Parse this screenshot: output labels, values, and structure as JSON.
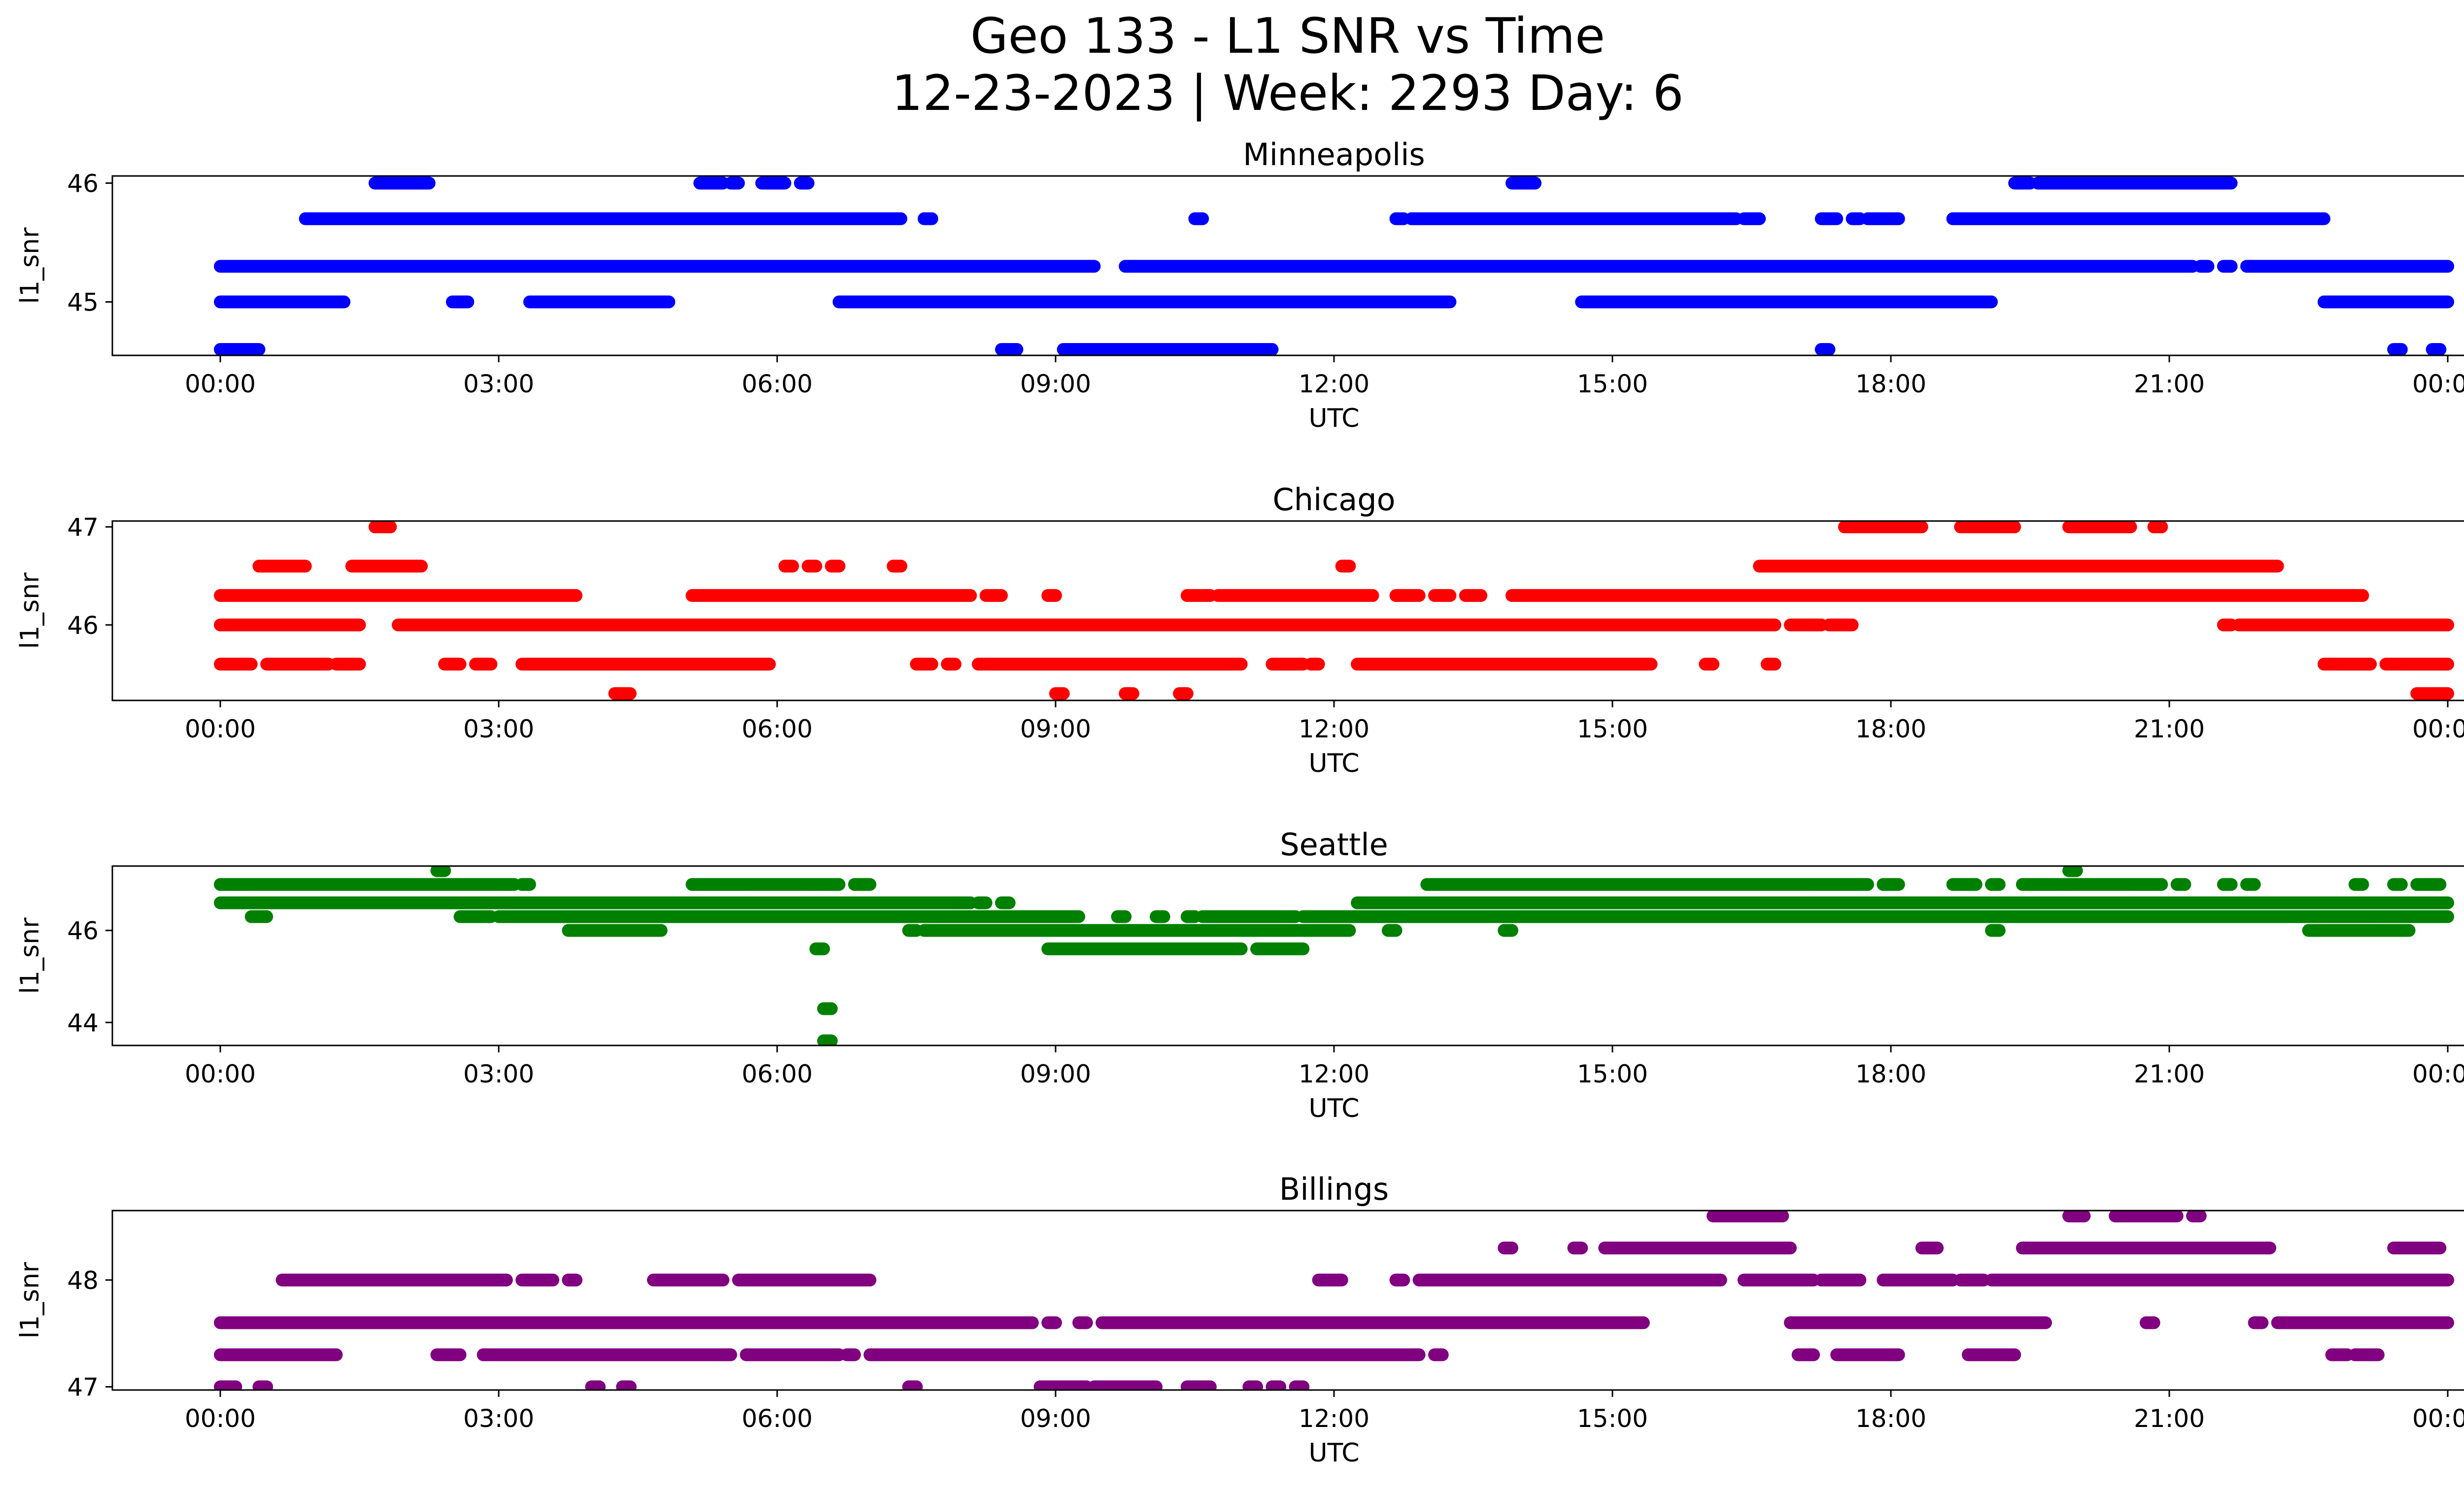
{
  "title": "Geo 133 - L1 SNR vs Time",
  "subtitle": "12-23-2023 | Week: 2293 Day: 6",
  "chart_data": [
    {
      "type": "scatter",
      "title": "Minneapolis",
      "xlabel": "UTC",
      "ylabel": "l1_snr",
      "color": "#0000ff",
      "xlim": [
        "23:10",
        "00:45 (next day)"
      ],
      "ylim": [
        44.55,
        46.06
      ],
      "yticks": [
        45,
        46
      ],
      "xticks": [
        "00:00",
        "03:00",
        "06:00",
        "09:00",
        "12:00",
        "15:00",
        "18:00",
        "21:00",
        "00:00"
      ],
      "levels": [
        {
          "y": 46.0,
          "x_ranges": [
            [
              "01:40",
              "02:15"
            ],
            [
              "05:10",
              "05:25"
            ],
            [
              "05:30",
              "05:35"
            ],
            [
              "05:50",
              "06:05"
            ],
            [
              "06:15",
              "06:20"
            ],
            [
              "13:55",
              "14:10"
            ],
            [
              "19:20",
              "19:30"
            ],
            [
              "19:35",
              "21:40"
            ]
          ]
        },
        {
          "y": 45.7,
          "x_ranges": [
            [
              "00:55",
              "07:20"
            ],
            [
              "07:35",
              "07:40"
            ],
            [
              "10:30",
              "10:35"
            ],
            [
              "12:40",
              "12:45"
            ],
            [
              "12:50",
              "16:20"
            ],
            [
              "16:25",
              "16:35"
            ],
            [
              "17:15",
              "17:25"
            ],
            [
              "17:35",
              "17:40"
            ],
            [
              "17:45",
              "18:05"
            ],
            [
              "18:40",
              "22:40"
            ]
          ]
        },
        {
          "y": 45.3,
          "x_ranges": [
            [
              "00:00",
              "09:25"
            ],
            [
              "09:45",
              "21:15"
            ],
            [
              "21:20",
              "21:25"
            ],
            [
              "21:35",
              "21:40"
            ],
            [
              "21:50",
              "24:00"
            ]
          ]
        },
        {
          "y": 45.0,
          "x_ranges": [
            [
              "00:00",
              "01:20"
            ],
            [
              "02:30",
              "02:40"
            ],
            [
              "03:20",
              "04:50"
            ],
            [
              "06:40",
              "13:15"
            ],
            [
              "14:40",
              "19:05"
            ],
            [
              "22:40",
              "24:00"
            ]
          ]
        },
        {
          "y": 44.6,
          "x_ranges": [
            [
              "00:00",
              "00:25"
            ],
            [
              "08:25",
              "08:35"
            ],
            [
              "09:05",
              "11:20"
            ],
            [
              "17:15",
              "17:20"
            ],
            [
              "23:25",
              "23:30"
            ],
            [
              "23:50",
              "23:55"
            ]
          ]
        }
      ]
    },
    {
      "type": "scatter",
      "title": "Chicago",
      "xlabel": "UTC",
      "ylabel": "l1_snr",
      "color": "#ff0000",
      "xlim": [
        "23:10",
        "00:45 (next day)"
      ],
      "ylim": [
        45.23,
        47.06
      ],
      "yticks": [
        46,
        47
      ],
      "xticks": [
        "00:00",
        "03:00",
        "06:00",
        "09:00",
        "12:00",
        "15:00",
        "18:00",
        "21:00",
        "00:00"
      ],
      "levels": [
        {
          "y": 47.0,
          "x_ranges": [
            [
              "01:40",
              "01:50"
            ],
            [
              "17:30",
              "18:20"
            ],
            [
              "18:45",
              "19:20"
            ],
            [
              "19:55",
              "20:35"
            ],
            [
              "20:50",
              "20:55"
            ]
          ]
        },
        {
          "y": 46.6,
          "x_ranges": [
            [
              "00:25",
              "00:55"
            ],
            [
              "01:25",
              "02:10"
            ],
            [
              "06:05",
              "06:10"
            ],
            [
              "06:20",
              "06:25"
            ],
            [
              "06:35",
              "06:40"
            ],
            [
              "07:15",
              "07:20"
            ],
            [
              "12:05",
              "12:10"
            ],
            [
              "16:35",
              "22:10"
            ]
          ]
        },
        {
          "y": 46.3,
          "x_ranges": [
            [
              "00:00",
              "03:50"
            ],
            [
              "05:05",
              "08:05"
            ],
            [
              "08:15",
              "08:25"
            ],
            [
              "08:55",
              "09:00"
            ],
            [
              "10:25",
              "10:40"
            ],
            [
              "10:45",
              "12:25"
            ],
            [
              "12:40",
              "12:55"
            ],
            [
              "13:05",
              "13:15"
            ],
            [
              "13:25",
              "13:35"
            ],
            [
              "13:55",
              "23:05"
            ]
          ]
        },
        {
          "y": 46.0,
          "x_ranges": [
            [
              "00:00",
              "01:30"
            ],
            [
              "01:55",
              "16:45"
            ],
            [
              "16:55",
              "17:15"
            ],
            [
              "17:20",
              "17:35"
            ],
            [
              "21:35",
              "21:40"
            ],
            [
              "21:45",
              "24:00"
            ]
          ]
        },
        {
          "y": 45.6,
          "x_ranges": [
            [
              "00:00",
              "00:20"
            ],
            [
              "00:30",
              "01:10"
            ],
            [
              "01:15",
              "01:30"
            ],
            [
              "02:25",
              "02:35"
            ],
            [
              "02:45",
              "02:55"
            ],
            [
              "03:15",
              "05:55"
            ],
            [
              "07:30",
              "07:40"
            ],
            [
              "07:50",
              "07:55"
            ],
            [
              "08:10",
              "11:00"
            ],
            [
              "11:20",
              "11:40"
            ],
            [
              "11:45",
              "11:50"
            ],
            [
              "12:15",
              "15:25"
            ],
            [
              "16:00",
              "16:05"
            ],
            [
              "16:40",
              "16:45"
            ],
            [
              "22:40",
              "23:10"
            ],
            [
              "23:20",
              "24:00"
            ]
          ]
        },
        {
          "y": 45.3,
          "x_ranges": [
            [
              "04:15",
              "04:25"
            ],
            [
              "09:00",
              "09:05"
            ],
            [
              "09:45",
              "09:50"
            ],
            [
              "10:20",
              "10:25"
            ],
            [
              "23:40",
              "24:00"
            ]
          ]
        }
      ]
    },
    {
      "type": "scatter",
      "title": "Seattle",
      "xlabel": "UTC",
      "ylabel": "l1_snr",
      "color": "#008000",
      "xlim": [
        "23:10",
        "00:45 (next day)"
      ],
      "ylim": [
        43.5,
        47.4
      ],
      "yticks": [
        44,
        46
      ],
      "xticks": [
        "00:00",
        "03:00",
        "06:00",
        "09:00",
        "12:00",
        "15:00",
        "18:00",
        "21:00",
        "00:00"
      ],
      "levels": [
        {
          "y": 47.3,
          "x_ranges": [
            [
              "02:20",
              "02:25"
            ],
            [
              "19:55",
              "20:00"
            ]
          ]
        },
        {
          "y": 47.0,
          "x_ranges": [
            [
              "00:00",
              "03:10"
            ],
            [
              "03:15",
              "03:20"
            ],
            [
              "05:05",
              "06:40"
            ],
            [
              "06:50",
              "07:00"
            ],
            [
              "13:00",
              "17:45"
            ],
            [
              "17:55",
              "18:05"
            ],
            [
              "18:40",
              "18:55"
            ],
            [
              "19:05",
              "19:10"
            ],
            [
              "19:25",
              "20:55"
            ],
            [
              "21:05",
              "21:10"
            ],
            [
              "21:35",
              "21:40"
            ],
            [
              "21:50",
              "21:55"
            ],
            [
              "23:00",
              "23:05"
            ],
            [
              "23:25",
              "23:30"
            ],
            [
              "23:40",
              "23:55"
            ]
          ]
        },
        {
          "y": 46.6,
          "x_ranges": [
            [
              "00:00",
              "07:55"
            ],
            [
              "07:55",
              "08:05"
            ],
            [
              "08:10",
              "08:15"
            ],
            [
              "08:25",
              "08:30"
            ],
            [
              "12:15",
              "24:00"
            ]
          ]
        },
        {
          "y": 46.3,
          "x_ranges": [
            [
              "00:20",
              "00:30"
            ],
            [
              "02:35",
              "02:55"
            ],
            [
              "03:00",
              "09:15"
            ],
            [
              "09:40",
              "09:45"
            ],
            [
              "10:05",
              "10:10"
            ],
            [
              "10:25",
              "10:30"
            ],
            [
              "10:35",
              "11:35"
            ],
            [
              "11:40",
              "24:00"
            ]
          ]
        },
        {
          "y": 46.0,
          "x_ranges": [
            [
              "03:45",
              "04:45"
            ],
            [
              "07:25",
              "07:30"
            ],
            [
              "07:35",
              "12:10"
            ],
            [
              "12:35",
              "12:40"
            ],
            [
              "13:50",
              "13:55"
            ],
            [
              "19:05",
              "19:10"
            ],
            [
              "22:30",
              "23:35"
            ]
          ]
        },
        {
          "y": 45.6,
          "x_ranges": [
            [
              "08:55",
              "11:00"
            ],
            [
              "11:10",
              "11:40"
            ]
          ]
        },
        {
          "y": 45.6,
          "x_ranges": [
            [
              "06:25",
              "06:30"
            ]
          ]
        },
        {
          "y": 44.3,
          "x_ranges": [
            [
              "06:30",
              "06:35"
            ]
          ]
        },
        {
          "y": 43.6,
          "x_ranges": [
            [
              "06:30",
              "06:35"
            ]
          ]
        }
      ]
    },
    {
      "type": "scatter",
      "title": "Billings",
      "xlabel": "UTC",
      "ylabel": "l1_snr",
      "color": "#800080",
      "xlim": [
        "23:10",
        "00:45 (next day)"
      ],
      "ylim": [
        46.97,
        48.65
      ],
      "yticks": [
        47,
        48
      ],
      "xticks": [
        "00:00",
        "03:00",
        "06:00",
        "09:00",
        "12:00",
        "15:00",
        "18:00",
        "21:00",
        "00:00"
      ],
      "levels": [
        {
          "y": 48.6,
          "x_ranges": [
            [
              "16:05",
              "16:50"
            ],
            [
              "19:55",
              "20:05"
            ],
            [
              "20:25",
              "21:05"
            ],
            [
              "21:15",
              "21:20"
            ]
          ]
        },
        {
          "y": 48.3,
          "x_ranges": [
            [
              "13:50",
              "13:55"
            ],
            [
              "14:35",
              "14:40"
            ],
            [
              "14:55",
              "16:55"
            ],
            [
              "18:20",
              "18:30"
            ],
            [
              "19:25",
              "22:05"
            ],
            [
              "23:25",
              "23:55"
            ]
          ]
        },
        {
          "y": 48.0,
          "x_ranges": [
            [
              "00:40",
              "03:05"
            ],
            [
              "03:15",
              "03:35"
            ],
            [
              "03:45",
              "03:50"
            ],
            [
              "04:40",
              "05:25"
            ],
            [
              "05:35",
              "07:00"
            ],
            [
              "11:50",
              "12:05"
            ],
            [
              "12:40",
              "12:45"
            ],
            [
              "12:55",
              "16:10"
            ],
            [
              "16:25",
              "17:10"
            ],
            [
              "17:15",
              "17:40"
            ],
            [
              "17:55",
              "18:40"
            ],
            [
              "18:45",
              "19:00"
            ],
            [
              "19:05",
              "24:00"
            ]
          ]
        },
        {
          "y": 47.6,
          "x_ranges": [
            [
              "00:00",
              "08:45"
            ],
            [
              "08:55",
              "09:00"
            ],
            [
              "09:15",
              "09:20"
            ],
            [
              "09:30",
              "15:20"
            ],
            [
              "16:55",
              "19:40"
            ],
            [
              "20:45",
              "20:50"
            ],
            [
              "21:55",
              "22:00"
            ],
            [
              "22:10",
              "24:00"
            ]
          ]
        },
        {
          "y": 47.3,
          "x_ranges": [
            [
              "00:00",
              "01:15"
            ],
            [
              "02:20",
              "02:35"
            ],
            [
              "02:50",
              "05:30"
            ],
            [
              "05:40",
              "06:40"
            ],
            [
              "06:45",
              "06:50"
            ],
            [
              "07:00",
              "12:55"
            ],
            [
              "13:05",
              "13:10"
            ],
            [
              "17:00",
              "17:10"
            ],
            [
              "17:25",
              "18:05"
            ],
            [
              "18:50",
              "19:20"
            ],
            [
              "22:45",
              "22:55"
            ],
            [
              "23:00",
              "23:15"
            ]
          ]
        },
        {
          "y": 47.0,
          "x_ranges": [
            [
              "00:00",
              "00:10"
            ],
            [
              "00:25",
              "00:30"
            ],
            [
              "04:00",
              "04:05"
            ],
            [
              "04:20",
              "04:25"
            ],
            [
              "07:25",
              "07:30"
            ],
            [
              "08:50",
              "09:20"
            ],
            [
              "09:25",
              "10:05"
            ],
            [
              "10:25",
              "10:40"
            ],
            [
              "11:05",
              "11:10"
            ],
            [
              "11:20",
              "11:25"
            ],
            [
              "11:35",
              "11:40"
            ]
          ]
        }
      ]
    }
  ]
}
